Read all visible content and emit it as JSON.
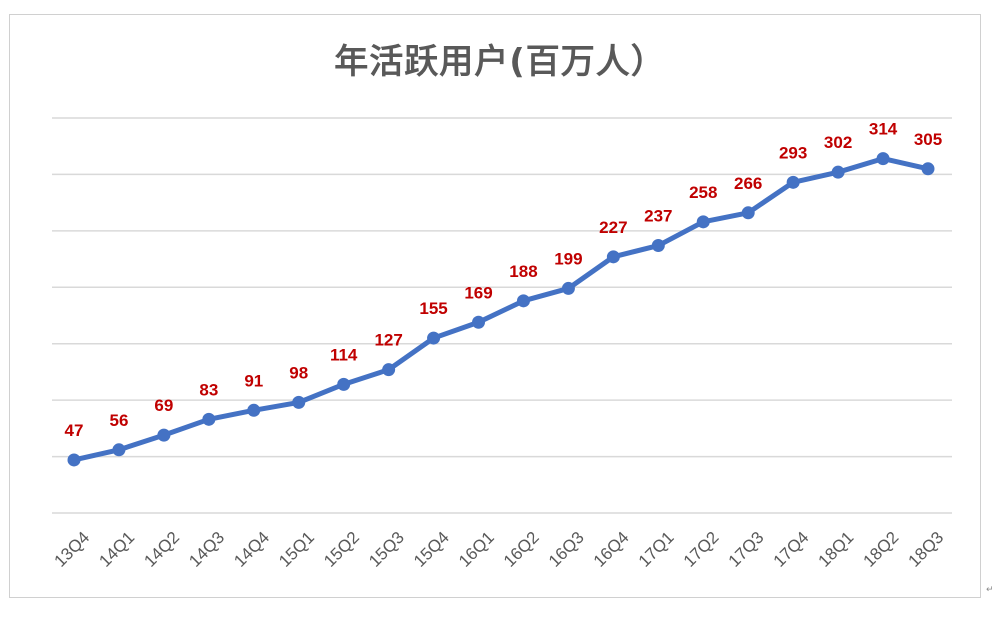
{
  "chart_data": {
    "type": "line",
    "title": "年活跃用户(百万人）",
    "categories": [
      "13Q4",
      "14Q1",
      "14Q2",
      "14Q3",
      "14Q4",
      "15Q1",
      "15Q2",
      "15Q3",
      "15Q4",
      "16Q1",
      "16Q2",
      "16Q3",
      "16Q4",
      "17Q1",
      "17Q2",
      "17Q3",
      "17Q4",
      "18Q1",
      "18Q2",
      "18Q3"
    ],
    "series": [
      {
        "values": [
          47,
          56,
          69,
          83,
          91,
          98,
          114,
          127,
          155,
          169,
          188,
          199,
          227,
          237,
          258,
          266,
          293,
          302,
          314,
          305
        ]
      }
    ],
    "ylim": [
      0,
      350
    ],
    "grid": true,
    "data_labels": true,
    "line_color": "#4472c4",
    "label_color": "#c00000"
  },
  "corner_mark": "↵"
}
